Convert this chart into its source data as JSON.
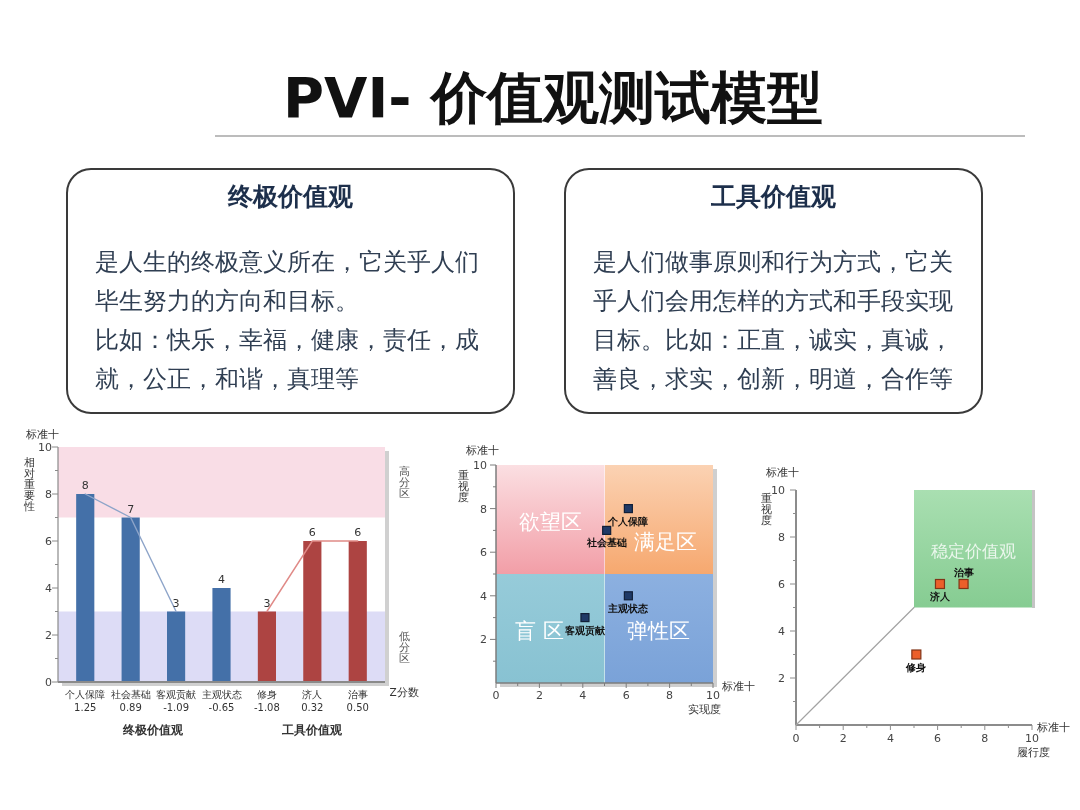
{
  "chart_data": [
    {
      "type": "other",
      "title": "PVI- 价值观测试模型"
    },
    {
      "type": "other",
      "title": "终极价值观",
      "annotations": [
        "是人生的终极意义所在，它关乎人们毕生努力的方向和目标。",
        "比如：快乐，幸福，健康，责任，成就，公正，和谐，真理等"
      ]
    },
    {
      "type": "other",
      "title": "工具价值观",
      "annotations": [
        "是人们做事原则和行为方式，它关乎人们会用怎样的方式和手段实现目标。比如：正直，诚实，真诚，善良，求实，创新，明道，合作等"
      ]
    },
    {
      "type": "bar",
      "categories": [
        "个人保障",
        "社会基础",
        "客观贡献",
        "主观状态",
        "修身",
        "济人",
        "治事"
      ],
      "series": [
        {
          "color": "#4470a8",
          "values": [
            8,
            7,
            3,
            4,
            null,
            null,
            null
          ],
          "value_labels": [
            "8",
            "7",
            "3",
            "4",
            null,
            null,
            null
          ]
        },
        {
          "color": "#ad4442",
          "values": [
            null,
            null,
            null,
            null,
            3,
            6,
            6
          ],
          "value_labels": [
            null,
            null,
            null,
            null,
            "3",
            "6",
            "6"
          ]
        },
        {
          "type": "line",
          "color": "#8da4c9",
          "values": [
            8,
            7,
            3,
            null,
            null,
            null,
            null
          ]
        },
        {
          "type": "line",
          "color": "#e08a87",
          "values": [
            null,
            null,
            null,
            null,
            3,
            6,
            6
          ]
        }
      ],
      "xlabel": "Z分数",
      "ylabel": "相对重要性",
      "ylim": [
        0,
        10
      ],
      "yticks": [
        0,
        {
          "value": 1,
          "label": null
        },
        2,
        {
          "value": 3,
          "label": null
        },
        4,
        {
          "value": 5,
          "label": null
        },
        6,
        {
          "value": 7,
          "label": null
        },
        8,
        {
          "value": 9,
          "label": null
        },
        10
      ],
      "bands": [
        {
          "axis": "y",
          "from": 7,
          "to": 10,
          "label": "高分区",
          "color": "#f9dde6"
        },
        {
          "axis": "y",
          "from": 0,
          "to": 3,
          "label": "低分区",
          "color": "#dddcf6"
        }
      ],
      "annotations": [
        "标准十",
        "1.25",
        "0.89",
        "-1.09",
        "-0.65",
        "-1.08",
        "0.32",
        "0.50",
        "终极价值观",
        "工具价值观"
      ]
    },
    {
      "type": "scatter",
      "xlabel": "实现度",
      "ylabel": "重视度",
      "xlim": [
        0,
        10
      ],
      "ylim": [
        0,
        10
      ],
      "xticks": [
        0,
        {
          "value": 1,
          "label": null
        },
        2,
        {
          "value": 3,
          "label": null
        },
        4,
        {
          "value": 5,
          "label": null
        },
        6,
        {
          "value": 7,
          "label": null
        },
        8,
        {
          "value": 9,
          "label": null
        },
        10
      ],
      "yticks": [
        {
          "value": 1,
          "label": null
        },
        2,
        {
          "value": 3,
          "label": null
        },
        4,
        {
          "value": 5,
          "label": null
        },
        6,
        {
          "value": 7,
          "label": null
        },
        8,
        {
          "value": 9,
          "label": null
        },
        10
      ],
      "marker": "square",
      "series": [
        {
          "color": "#1f3966",
          "x": [
            6.1,
            5.1,
            4.1,
            6.1
          ],
          "values": [
            8,
            7,
            3,
            4
          ]
        }
      ],
      "annotations": [
        "标准十",
        "标准十",
        {
          "text": "个人保障",
          "x": 6.1,
          "y": 8
        },
        {
          "text": "社会基础",
          "x": 5.1,
          "y": 7
        },
        {
          "text": "客观贡献",
          "x": 4.1,
          "y": 3
        },
        {
          "text": "主观状态",
          "x": 6.1,
          "y": 4
        },
        "欲望区",
        "满足区",
        "盲 区",
        "弹性区"
      ]
    },
    {
      "type": "scatter",
      "xlabel": "履行度",
      "ylabel": "重视度",
      "xlim": [
        0,
        10
      ],
      "ylim": [
        0,
        10
      ],
      "xticks": [
        0,
        {
          "value": 1,
          "label": null
        },
        2,
        {
          "value": 3,
          "label": null
        },
        4,
        {
          "value": 5,
          "label": null
        },
        6,
        {
          "value": 7,
          "label": null
        },
        8,
        {
          "value": 9,
          "label": null
        },
        10
      ],
      "yticks": [
        {
          "value": 1,
          "label": null
        },
        2,
        {
          "value": 3,
          "label": null
        },
        4,
        {
          "value": 5,
          "label": null
        },
        6,
        {
          "value": 7,
          "label": null
        },
        8,
        {
          "value": 9,
          "label": null
        },
        10
      ],
      "marker": "square",
      "series": [
        {
          "type": "line",
          "marker": "none",
          "color": "#a3a3a3",
          "x": [
            0,
            5
          ],
          "values": [
            0,
            5
          ]
        },
        {
          "color": "#ec5f2a",
          "x": [
            5.1,
            6.1,
            7.1
          ],
          "values": [
            3,
            6,
            6
          ]
        }
      ],
      "annotations": [
        "标准十",
        "标准十",
        {
          "text": "修身",
          "x": 5.1,
          "y": 3
        },
        {
          "text": "济人",
          "x": 6.1,
          "y": 6
        },
        {
          "text": "治事",
          "x": 7.1,
          "y": 6
        },
        "稳定价值观"
      ]
    }
  ]
}
